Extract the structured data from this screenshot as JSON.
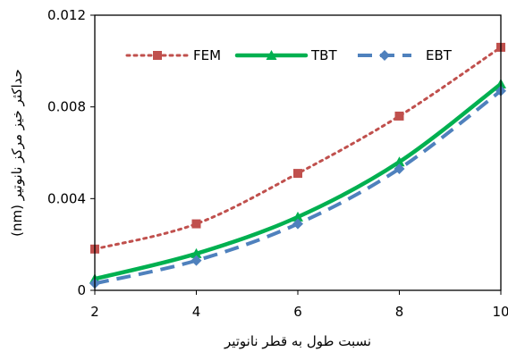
{
  "chart_data": {
    "type": "line",
    "xlabel": "نسبت طول به قطر نانوتیر",
    "ylabel": "حداکثر خیز مرکز نانوتیر (nm)",
    "xlim": [
      2,
      10
    ],
    "ylim": [
      0,
      0.012
    ],
    "x_ticks": [
      "2",
      "4",
      "6",
      "8",
      "10"
    ],
    "y_ticks": [
      "0",
      "0.004",
      "0.008",
      "0.012"
    ],
    "x_tick_values": [
      2,
      4,
      6,
      8,
      10
    ],
    "y_tick_values": [
      0,
      0.004,
      0.008,
      0.012
    ],
    "grid": false,
    "legend_position": "top",
    "series": [
      {
        "name": "FEM",
        "style": "dotted",
        "marker": "square",
        "color": "#c0504d",
        "x": [
          2,
          4,
          6,
          8,
          10
        ],
        "y": [
          0.0018,
          0.0029,
          0.0051,
          0.0076,
          0.0106
        ]
      },
      {
        "name": "TBT",
        "style": "solid",
        "marker": "triangle",
        "color": "#00b050",
        "x": [
          2,
          4,
          6,
          8,
          10
        ],
        "y": [
          0.0005,
          0.0016,
          0.0032,
          0.0056,
          0.009
        ]
      },
      {
        "name": "EBT",
        "style": "dashed",
        "marker": "diamond",
        "color": "#4f81bd",
        "x": [
          2,
          4,
          6,
          8,
          10
        ],
        "y": [
          0.0003,
          0.0013,
          0.0029,
          0.0053,
          0.0087
        ]
      }
    ]
  }
}
